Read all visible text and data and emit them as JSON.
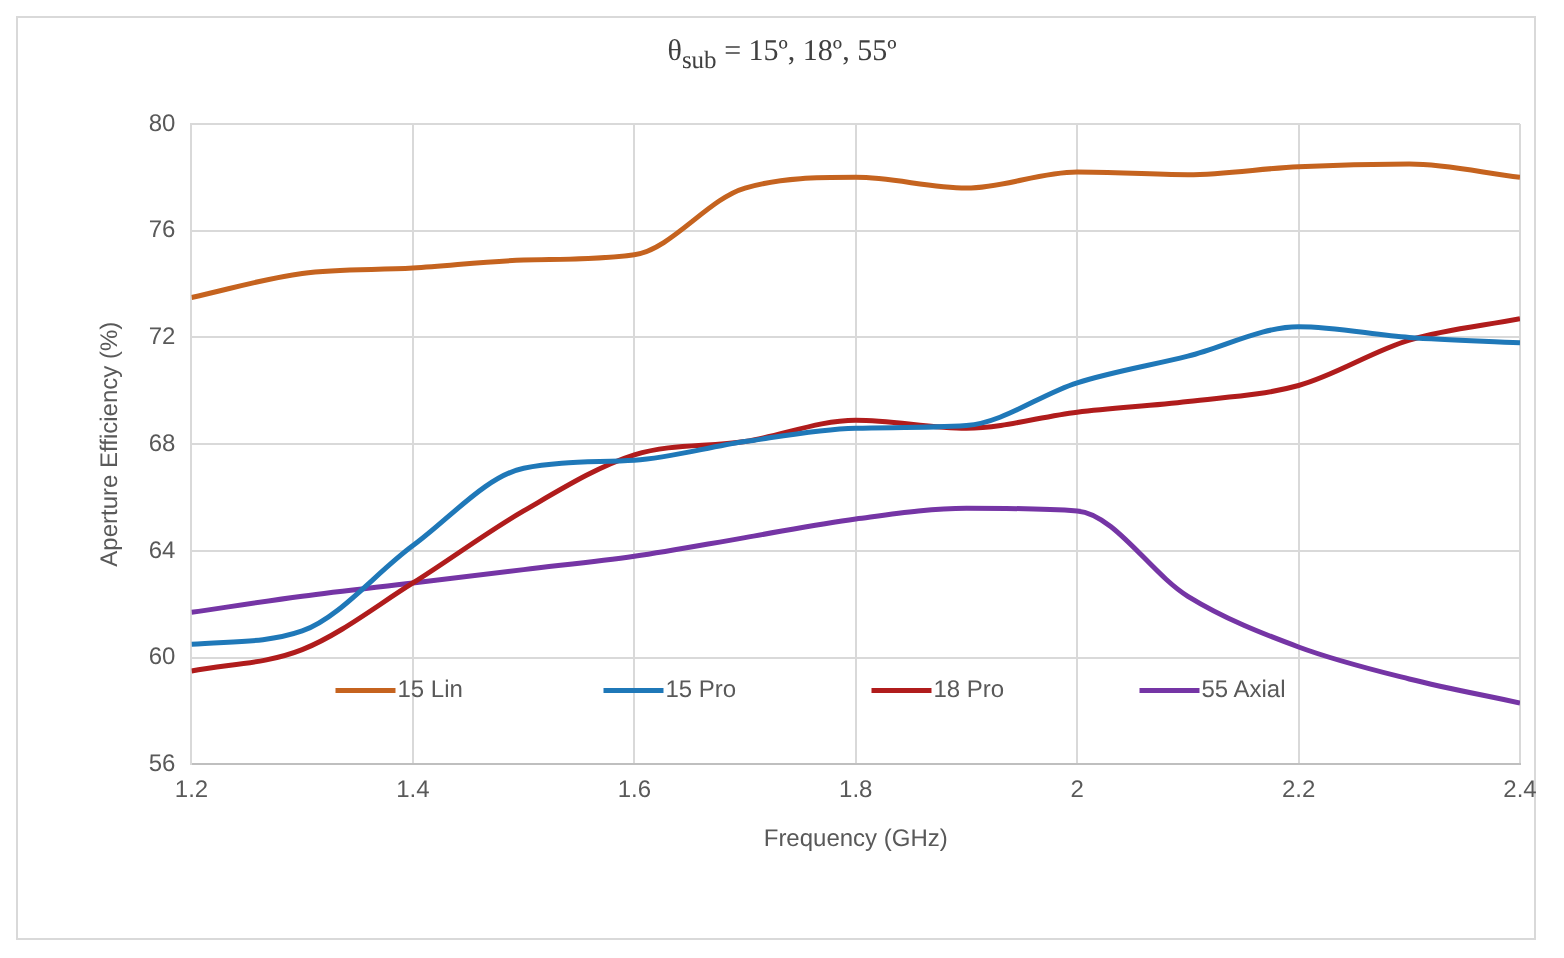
{
  "chart_data": {
    "type": "line",
    "title": "θ$_{sub}$ = 15º, 18º, 55º",
    "xlabel": "Frequency (GHz)",
    "ylabel": "Aperture Efficiency (%)",
    "x": [
      1.2,
      1.3,
      1.4,
      1.5,
      1.6,
      1.7,
      1.8,
      1.9,
      2.0,
      2.1,
      2.2,
      2.3,
      2.4
    ],
    "series": [
      {
        "name": "15 Lin",
        "color": "#c5631f",
        "values": [
          73.5,
          74.4,
          74.6,
          74.9,
          75.1,
          77.6,
          78.0,
          77.6,
          78.2,
          78.1,
          78.4,
          78.5,
          78.0
        ]
      },
      {
        "name": "15 Pro",
        "color": "#1f78b8",
        "values": [
          60.5,
          61.0,
          64.2,
          67.1,
          67.4,
          68.1,
          68.6,
          68.7,
          70.3,
          71.3,
          72.4,
          72.0,
          71.8
        ]
      },
      {
        "name": "18 Pro",
        "color": "#b01c1c",
        "values": [
          59.5,
          60.3,
          62.8,
          65.5,
          67.6,
          68.1,
          68.9,
          68.6,
          69.2,
          69.6,
          70.2,
          71.9,
          72.7
        ]
      },
      {
        "name": "55 Axial",
        "color": "#7535a5",
        "values": [
          61.7,
          62.3,
          62.8,
          63.3,
          63.8,
          64.5,
          65.2,
          65.6,
          65.5,
          62.3,
          60.4,
          59.2,
          58.3
        ]
      }
    ],
    "xlim": [
      1.2,
      2.4
    ],
    "xticks": [
      1.2,
      1.4,
      1.6,
      1.8,
      2,
      2.2,
      2.4
    ],
    "ylim": [
      56,
      80
    ],
    "yticks": [
      56,
      60,
      64,
      68,
      72,
      76,
      80
    ],
    "grid": true,
    "legend": "bottom",
    "marker": "none",
    "line_style": "solid"
  }
}
